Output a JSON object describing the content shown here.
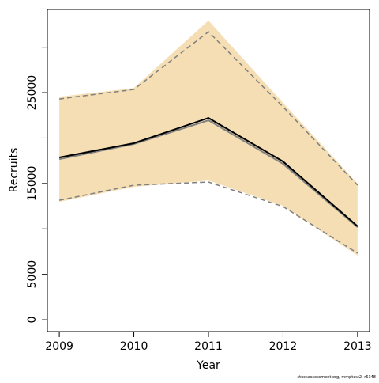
{
  "chart_data": {
    "type": "line",
    "x_label": "Year",
    "y_label": "Recruits",
    "footnote": "stockassessment.org, mmptest2, r6348",
    "x": [
      2009,
      2010,
      2011,
      2012,
      2013
    ],
    "xlim": [
      2008.84,
      2013.16
    ],
    "xticks": [
      2009,
      2010,
      2011,
      2012,
      2013
    ],
    "ylim": [
      -1300,
      34150
    ],
    "yticks": [
      0,
      5000,
      15000,
      25000
    ],
    "yticks_unlabeled": [
      10000,
      20000,
      30000
    ],
    "band": {
      "color": "#f5deb3",
      "upper": [
        24550,
        25500,
        32930,
        23870,
        14980
      ],
      "lower": [
        12980,
        14630,
        15330,
        12540,
        7060
      ]
    },
    "series": [
      {
        "color": "#808080",
        "dash": true,
        "values": [
          24300,
          25350,
          31700,
          23430,
          14810
        ]
      },
      {
        "color": "#808080",
        "dash": true,
        "values": [
          13150,
          14810,
          15160,
          12460,
          7320
        ]
      },
      {
        "color": "#808080",
        "dash": false,
        "values": [
          17680,
          19340,
          21950,
          17160,
          10190
        ]
      },
      {
        "color": "#000000",
        "dash": false,
        "values": [
          17860,
          19430,
          22210,
          17420,
          10280
        ]
      }
    ]
  }
}
